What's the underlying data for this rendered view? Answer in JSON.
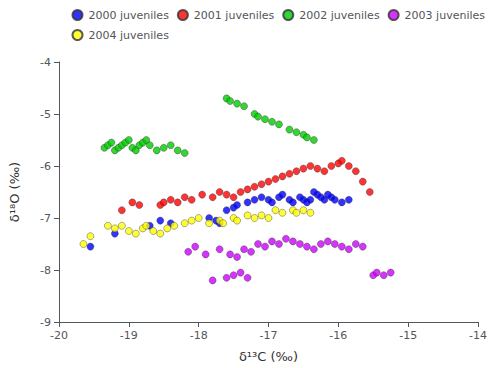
{
  "chart_data": {
    "type": "scatter",
    "xlabel": "δ¹³C (‰)",
    "ylabel": "δ¹⁸O (‰)",
    "xlim": [
      -20,
      -14
    ],
    "ylim": [
      -9,
      -4
    ],
    "xticks": [
      -20,
      -19,
      -18,
      -17,
      -16,
      -15,
      -14
    ],
    "yticks": [
      -9,
      -8,
      -7,
      -6,
      -5,
      -4
    ],
    "grid": false,
    "legend": "upper right",
    "series": [
      {
        "name": "2000 juveniles",
        "color": "#0000ff",
        "x": [
          -19.55,
          -19.2,
          -18.7,
          -18.55,
          -18.4,
          -17.85,
          -17.75,
          -17.7,
          -17.6,
          -17.5,
          -17.45,
          -17.3,
          -17.2,
          -17.1,
          -17.0,
          -16.95,
          -16.85,
          -16.8,
          -16.7,
          -16.65,
          -16.55,
          -16.5,
          -16.45,
          -16.4,
          -16.35,
          -16.3,
          -16.25,
          -16.2,
          -16.15,
          -16.1,
          -16.05,
          -15.95,
          -15.85
        ],
        "values": [
          -7.55,
          -7.3,
          -7.15,
          -7.05,
          -7.1,
          -7.0,
          -7.05,
          -7.1,
          -6.85,
          -6.8,
          -6.75,
          -6.7,
          -6.65,
          -6.6,
          -6.65,
          -6.7,
          -6.6,
          -6.55,
          -6.65,
          -6.7,
          -6.6,
          -6.65,
          -6.7,
          -6.65,
          -6.5,
          -6.55,
          -6.6,
          -6.65,
          -6.55,
          -6.6,
          -6.65,
          -6.7,
          -6.65
        ]
      },
      {
        "name": "2001 juveniles",
        "color": "#ff0000",
        "x": [
          -19.1,
          -18.95,
          -18.85,
          -18.55,
          -18.5,
          -18.4,
          -18.3,
          -18.2,
          -18.1,
          -17.95,
          -17.8,
          -17.7,
          -17.6,
          -17.5,
          -17.4,
          -17.3,
          -17.2,
          -17.1,
          -17.0,
          -16.9,
          -16.8,
          -16.7,
          -16.6,
          -16.5,
          -16.4,
          -16.3,
          -16.2,
          -16.1,
          -16.0,
          -15.95,
          -15.85,
          -15.75,
          -15.65,
          -15.55
        ],
        "values": [
          -6.85,
          -6.7,
          -6.75,
          -6.75,
          -6.7,
          -6.65,
          -6.7,
          -6.6,
          -6.65,
          -6.55,
          -6.6,
          -6.5,
          -6.55,
          -6.6,
          -6.5,
          -6.45,
          -6.4,
          -6.35,
          -6.3,
          -6.25,
          -6.2,
          -6.15,
          -6.1,
          -6.05,
          -6.0,
          -6.05,
          -6.1,
          -6.0,
          -5.95,
          -5.9,
          -6.0,
          -6.1,
          -6.3,
          -6.5
        ]
      },
      {
        "name": "2002 juveniles",
        "color": "#00cc00",
        "x": [
          -19.35,
          -19.3,
          -19.25,
          -19.2,
          -19.15,
          -19.1,
          -19.05,
          -19.0,
          -18.95,
          -18.9,
          -18.85,
          -18.8,
          -18.75,
          -18.7,
          -18.6,
          -18.5,
          -18.4,
          -18.3,
          -18.2,
          -17.6,
          -17.55,
          -17.45,
          -17.35,
          -17.2,
          -17.15,
          -17.05,
          -16.95,
          -16.85,
          -16.7,
          -16.6,
          -16.5,
          -16.45,
          -16.35
        ],
        "values": [
          -5.65,
          -5.6,
          -5.55,
          -5.7,
          -5.65,
          -5.6,
          -5.55,
          -5.5,
          -5.65,
          -5.7,
          -5.6,
          -5.55,
          -5.5,
          -5.6,
          -5.7,
          -5.65,
          -5.6,
          -5.7,
          -5.75,
          -4.7,
          -4.75,
          -4.8,
          -4.85,
          -5.0,
          -5.05,
          -5.1,
          -5.15,
          -5.2,
          -5.3,
          -5.35,
          -5.4,
          -5.45,
          -5.5
        ]
      },
      {
        "name": "2003 juveniles",
        "color": "#cc00ff",
        "x": [
          -18.15,
          -18.05,
          -17.9,
          -17.7,
          -17.55,
          -17.45,
          -17.35,
          -17.25,
          -17.15,
          -17.05,
          -16.95,
          -16.85,
          -16.75,
          -16.65,
          -16.55,
          -16.45,
          -16.35,
          -16.25,
          -16.15,
          -16.05,
          -15.95,
          -15.85,
          -15.75,
          -15.65,
          -15.5,
          -15.45,
          -15.35,
          -15.25,
          -17.8,
          -17.6,
          -17.5,
          -17.4,
          -17.3
        ],
        "values": [
          -7.65,
          -7.55,
          -7.7,
          -7.6,
          -7.7,
          -7.75,
          -7.6,
          -7.65,
          -7.5,
          -7.55,
          -7.45,
          -7.5,
          -7.4,
          -7.45,
          -7.5,
          -7.55,
          -7.6,
          -7.5,
          -7.45,
          -7.5,
          -7.55,
          -7.6,
          -7.5,
          -7.55,
          -8.1,
          -8.05,
          -8.1,
          -8.05,
          -8.2,
          -8.15,
          -8.1,
          -8.05,
          -8.15
        ]
      },
      {
        "name": "2004 juveniles",
        "color": "#ffff00",
        "x": [
          -19.65,
          -19.55,
          -19.3,
          -19.2,
          -19.1,
          -19.0,
          -18.9,
          -18.8,
          -18.75,
          -18.65,
          -18.55,
          -18.45,
          -18.35,
          -18.2,
          -18.1,
          -18.0,
          -17.85,
          -17.7,
          -17.65,
          -17.5,
          -17.45,
          -17.3,
          -17.2,
          -17.1,
          -17.0,
          -16.9,
          -16.8,
          -16.65,
          -16.6,
          -16.5,
          -16.4
        ],
        "values": [
          -7.5,
          -7.35,
          -7.15,
          -7.2,
          -7.15,
          -7.25,
          -7.3,
          -7.2,
          -7.15,
          -7.25,
          -7.3,
          -7.2,
          -7.15,
          -7.1,
          -7.05,
          -7.0,
          -7.1,
          -7.05,
          -7.1,
          -7.0,
          -7.05,
          -6.95,
          -7.0,
          -6.95,
          -7.0,
          -6.85,
          -6.9,
          -6.85,
          -6.9,
          -6.85,
          -6.9
        ]
      }
    ]
  }
}
